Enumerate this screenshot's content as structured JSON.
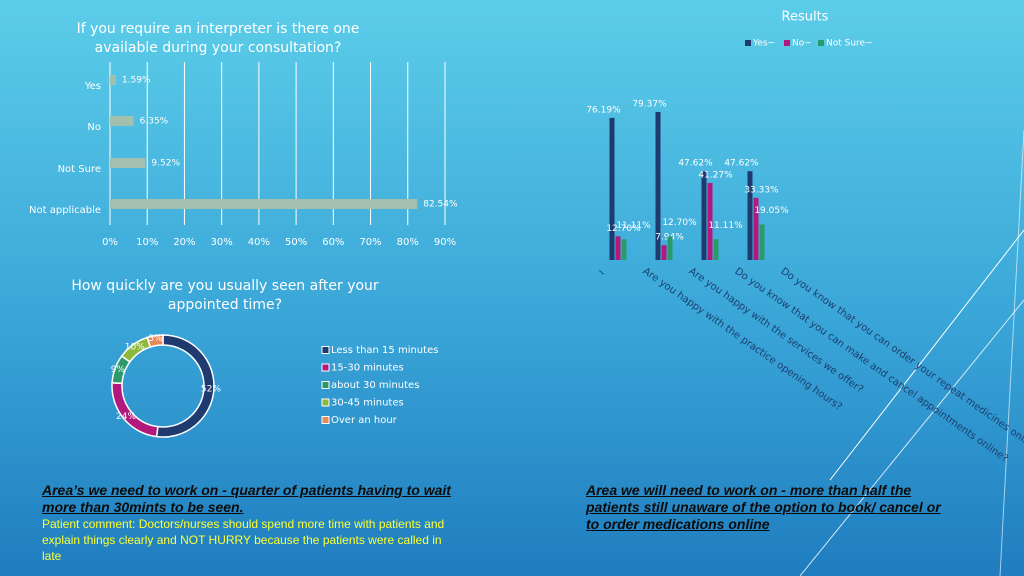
{
  "chart_data": [
    {
      "type": "hbar",
      "title": "If you require an interpreter is there one available during your consultation?",
      "categories": [
        "Yes",
        "No",
        "Not Sure",
        "Not applicable"
      ],
      "values": [
        1.59,
        6.35,
        9.52,
        82.54
      ],
      "value_labels": [
        "1.59%",
        "6.35%",
        "9.52%",
        "82.54%"
      ],
      "color": "#a3bfae",
      "xlim": [
        0,
        90
      ],
      "xticks": [
        {
          "value": 0,
          "label": "0%"
        },
        {
          "value": 10,
          "label": "10%"
        },
        {
          "value": 20,
          "label": "20%"
        },
        {
          "value": 30,
          "label": "30%"
        },
        {
          "value": 40,
          "label": "40%"
        },
        {
          "value": 50,
          "label": "50%"
        },
        {
          "value": 60,
          "label": "60%"
        },
        {
          "value": 70,
          "label": "70%"
        },
        {
          "value": 80,
          "label": "80%"
        },
        {
          "value": 90,
          "label": "90%"
        }
      ],
      "grid": true
    },
    {
      "type": "donut",
      "title": "How quickly are you usually seen after your appointed time?",
      "categories": [
        "Less than 15 minutes",
        "15-30 minutes",
        "about 30 minutes",
        "30-45 minutes",
        "Over an hour"
      ],
      "values": [
        52,
        24,
        9,
        10,
        5
      ],
      "value_labels": [
        "52%",
        "24%",
        "9%",
        "10%",
        "5%"
      ],
      "colors": [
        "#1f3a6e",
        "#b3197c",
        "#2b9a6a",
        "#8cb83c",
        "#e9895a"
      ]
    },
    {
      "type": "grouped_bar",
      "title": "Results",
      "categories": [
        "~",
        "Are you happy with the practice opening hours?",
        "Are you happy with the services we offer?",
        "Do you know that you can make and cancel appointments online?",
        "Do you know that you can order your repeat medicines online?"
      ],
      "series": [
        {
          "name": "Yes~",
          "color": "#1f3a6e",
          "values": [
            null,
            76.19,
            79.37,
            47.62,
            47.62
          ],
          "value_labels": [
            null,
            "76.19%",
            "79.37%",
            "47.62%",
            "47.62%"
          ]
        },
        {
          "name": "No~",
          "color": "#b3197c",
          "values": [
            null,
            12.7,
            7.94,
            41.27,
            33.33
          ],
          "value_labels": [
            null,
            "12.70%",
            "7.94%",
            "41.27%",
            "33.33%"
          ]
        },
        {
          "name": "Not Sure~",
          "color": "#2b9a6a",
          "values": [
            null,
            11.11,
            12.7,
            11.11,
            19.05
          ],
          "value_labels": [
            null,
            "11.11%",
            "12.70%",
            "11.11%",
            "19.05%"
          ]
        }
      ],
      "ylim": [
        0,
        100
      ]
    }
  ],
  "notes": [
    {
      "heading": "Area’s we need to work on - quarter of patients having to wait more than 30mints to be seen.",
      "body": "Patient comment: Doctors/nurses should spend more time with patients and explain things clearly and NOT HURRY because the patients were called in late"
    },
    {
      "heading": "Area we will need to work on - more than half the patients still unaware of the option to book/ cancel or to order medications  online"
    }
  ]
}
